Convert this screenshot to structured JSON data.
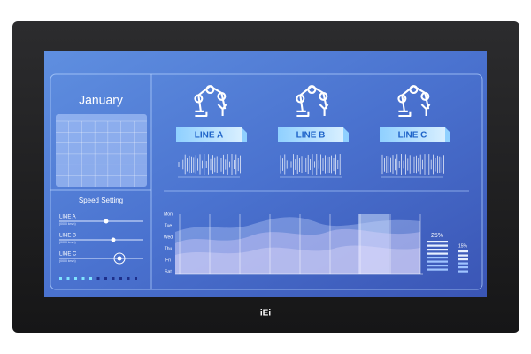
{
  "calendar": {
    "month": "January"
  },
  "speed_setting": {
    "title": "Speed Setting",
    "sliders": [
      {
        "label": "LINE A",
        "unit": "(0000 km/h)"
      },
      {
        "label": "LINE B",
        "unit": "(0000 km/h)"
      },
      {
        "label": "LINE C",
        "unit": "(0000 km/h)"
      }
    ]
  },
  "lines": [
    {
      "label": "LINE A"
    },
    {
      "label": "LINE B"
    },
    {
      "label": "LINE C"
    }
  ],
  "weekly_chart": {
    "days": [
      "Mon",
      "Tue",
      "Wed",
      "Thu",
      "Fri",
      "Sat"
    ]
  },
  "gauges": [
    {
      "label": "25%"
    },
    {
      "label": "15%"
    }
  ],
  "brand": "iEi"
}
